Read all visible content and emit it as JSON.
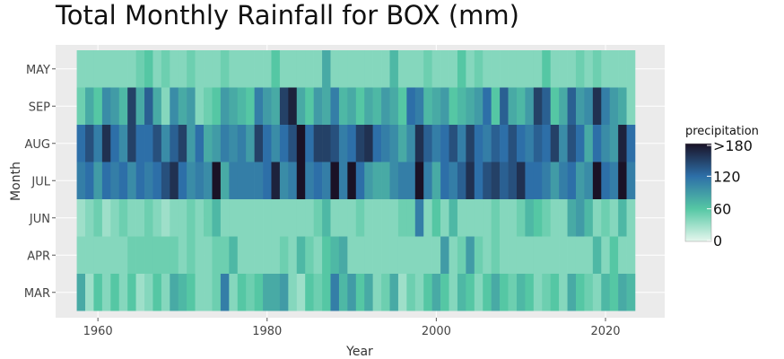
{
  "chart_data": {
    "type": "heatmap",
    "title": "Total Monthly Rainfall for BOX (mm)",
    "xlabel": "Year",
    "ylabel": "Month",
    "x_ticks": [
      1960,
      1980,
      2000,
      2020
    ],
    "xlim": [
      1955,
      2027
    ],
    "years": {
      "start": 1958,
      "end": 2023
    },
    "months": [
      "MAR",
      "APR",
      "JUN",
      "JUL",
      "AUG",
      "SEP",
      "MAY"
    ],
    "legend": {
      "title": "precipitation",
      "tick_labels": [
        "0",
        "60",
        "120",
        ">180"
      ],
      "tick_values": [
        0,
        60,
        120,
        180
      ],
      "colors": [
        "#e6f7ee",
        "#55c7a4",
        "#2d6fa8",
        "#1a1226"
      ]
    },
    "values": {
      "MAR": [
        80,
        30,
        60,
        40,
        60,
        40,
        60,
        30,
        40,
        60,
        40,
        80,
        70,
        60,
        40,
        40,
        50,
        110,
        40,
        60,
        50,
        60,
        80,
        80,
        90,
        40,
        30,
        60,
        50,
        60,
        110,
        70,
        90,
        60,
        80,
        40,
        50,
        80,
        30,
        50,
        40,
        60,
        80,
        60,
        40,
        70,
        60,
        40,
        60,
        80,
        60,
        50,
        70,
        60,
        40,
        50,
        60,
        40,
        80,
        60,
        50,
        40,
        70,
        60,
        80,
        70
      ],
      "APR": [
        40,
        40,
        40,
        40,
        40,
        40,
        50,
        50,
        50,
        50,
        50,
        50,
        40,
        50,
        40,
        40,
        50,
        50,
        70,
        40,
        40,
        40,
        40,
        40,
        50,
        40,
        70,
        50,
        40,
        60,
        70,
        80,
        40,
        40,
        40,
        40,
        40,
        40,
        40,
        40,
        40,
        40,
        40,
        90,
        40,
        50,
        90,
        50,
        40,
        50,
        40,
        40,
        40,
        40,
        40,
        40,
        40,
        40,
        40,
        40,
        40,
        70,
        40,
        60,
        40,
        40
      ],
      "JUN": [
        30,
        40,
        50,
        30,
        40,
        50,
        40,
        40,
        50,
        40,
        30,
        40,
        40,
        50,
        40,
        50,
        70,
        40,
        40,
        40,
        40,
        40,
        40,
        40,
        40,
        40,
        40,
        40,
        50,
        70,
        40,
        40,
        40,
        50,
        40,
        40,
        40,
        40,
        50,
        50,
        110,
        40,
        60,
        40,
        70,
        40,
        40,
        40,
        40,
        50,
        40,
        40,
        50,
        70,
        60,
        50,
        40,
        40,
        80,
        90,
        70,
        40,
        50,
        40,
        70,
        40
      ],
      "JUL": [
        110,
        120,
        90,
        120,
        110,
        120,
        100,
        120,
        110,
        120,
        140,
        160,
        120,
        100,
        110,
        100,
        220,
        80,
        110,
        110,
        110,
        110,
        120,
        170,
        100,
        110,
        220,
        110,
        120,
        110,
        200,
        110,
        220,
        120,
        90,
        80,
        80,
        100,
        110,
        110,
        200,
        110,
        80,
        120,
        110,
        130,
        160,
        120,
        140,
        150,
        130,
        140,
        160,
        120,
        120,
        110,
        90,
        110,
        120,
        90,
        100,
        210,
        120,
        110,
        210,
        110
      ],
      "AUG": [
        120,
        140,
        110,
        160,
        120,
        100,
        150,
        120,
        120,
        140,
        100,
        130,
        150,
        90,
        120,
        80,
        90,
        110,
        100,
        110,
        90,
        150,
        120,
        100,
        120,
        140,
        200,
        120,
        150,
        150,
        140,
        110,
        120,
        150,
        160,
        120,
        110,
        100,
        80,
        100,
        160,
        130,
        110,
        120,
        140,
        110,
        150,
        120,
        110,
        130,
        120,
        140,
        120,
        110,
        130,
        120,
        150,
        100,
        140,
        120,
        80,
        120,
        100,
        90,
        170,
        120
      ],
      "SEP": [
        50,
        80,
        60,
        100,
        90,
        70,
        150,
        80,
        130,
        80,
        40,
        100,
        80,
        90,
        40,
        50,
        60,
        90,
        80,
        70,
        60,
        110,
        90,
        80,
        150,
        170,
        80,
        60,
        90,
        80,
        110,
        70,
        80,
        60,
        80,
        70,
        90,
        80,
        60,
        120,
        110,
        70,
        80,
        90,
        60,
        70,
        80,
        90,
        120,
        60,
        130,
        80,
        70,
        90,
        150,
        130,
        60,
        80,
        130,
        90,
        100,
        160,
        110,
        90,
        80,
        40
      ],
      "MAY": [
        40,
        40,
        40,
        40,
        40,
        40,
        40,
        50,
        60,
        40,
        50,
        40,
        40,
        50,
        40,
        40,
        40,
        50,
        40,
        40,
        40,
        40,
        40,
        60,
        40,
        40,
        40,
        40,
        40,
        80,
        40,
        40,
        40,
        40,
        40,
        40,
        40,
        70,
        40,
        40,
        40,
        50,
        40,
        40,
        40,
        60,
        40,
        50,
        40,
        40,
        40,
        40,
        40,
        40,
        40,
        60,
        40,
        40,
        40,
        50,
        40,
        50,
        40,
        40,
        40,
        40
      ]
    }
  }
}
